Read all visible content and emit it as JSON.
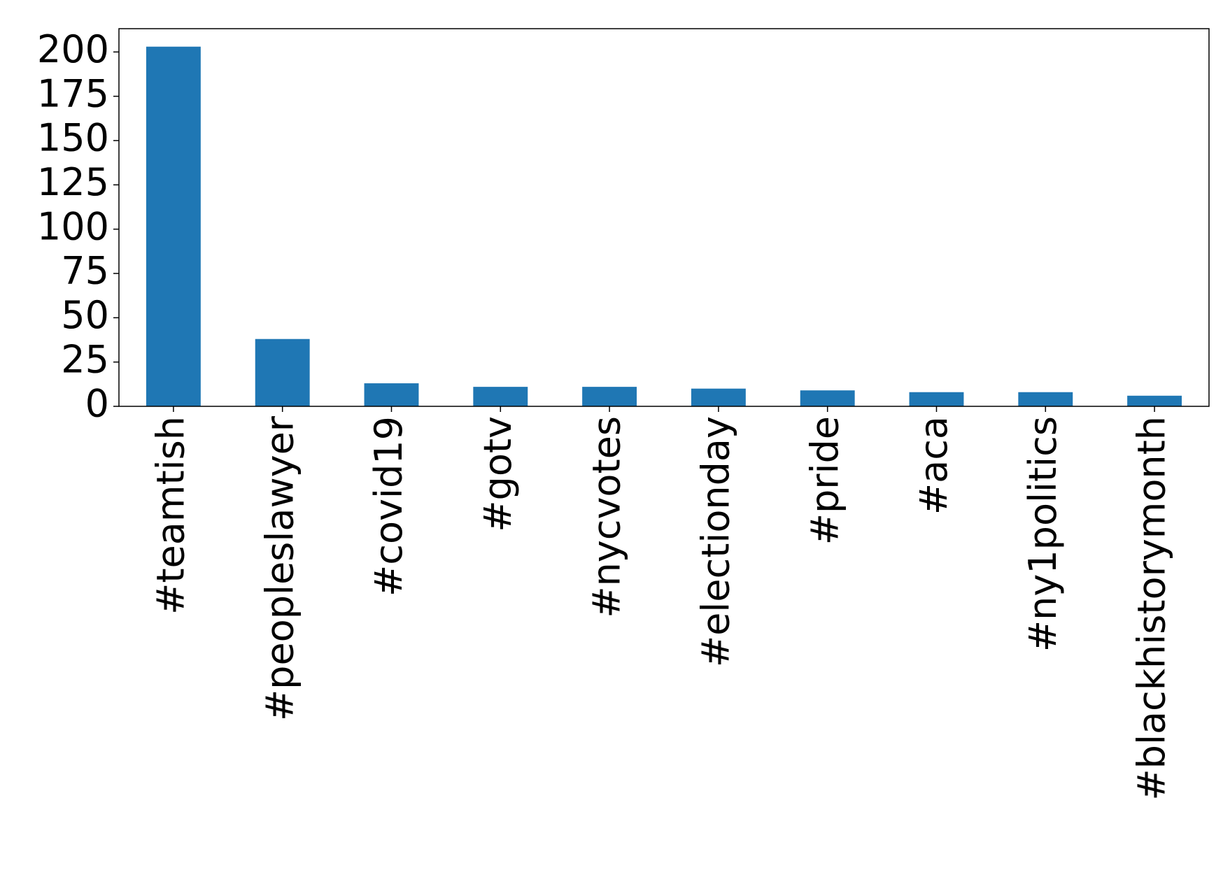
{
  "chart_data": {
    "type": "bar",
    "categories": [
      "#teamtish",
      "#peopleslawyer",
      "#covid19",
      "#gotv",
      "#nycvotes",
      "#electionday",
      "#pride",
      "#aca",
      "#ny1politics",
      "#blackhistorymonth"
    ],
    "values": [
      203,
      38,
      13,
      11,
      11,
      10,
      9,
      8,
      8,
      6
    ],
    "color": "#1f77b4",
    "ylim": [
      0,
      213.15
    ],
    "yticks": [
      0,
      25,
      50,
      75,
      100,
      125,
      150,
      175,
      200
    ],
    "grid": false
  }
}
